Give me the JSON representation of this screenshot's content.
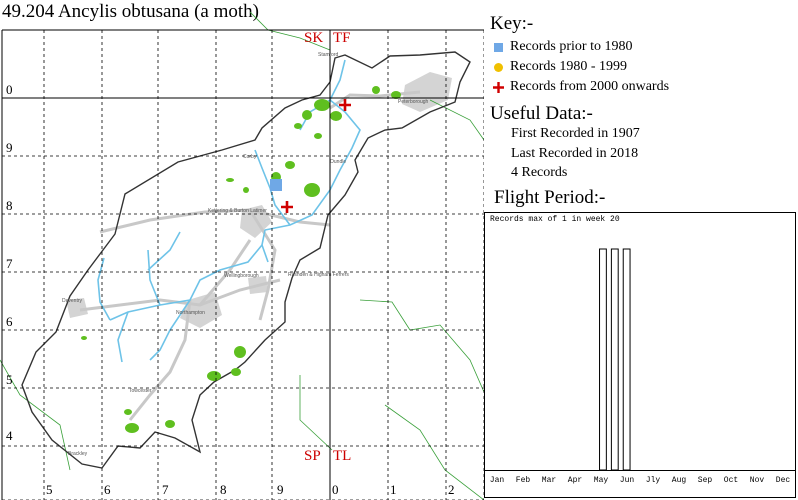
{
  "title": "49.204 Ancylis obtusana (a moth)",
  "map": {
    "square_labels": {
      "sk": "SK",
      "tf": "TF",
      "sp": "SP",
      "tl": "TL"
    },
    "row_labels": [
      "0",
      "9",
      "8",
      "7",
      "6",
      "5",
      "4"
    ],
    "col_labels": [
      "5",
      "6",
      "7",
      "8",
      "9",
      "0",
      "1",
      "2"
    ],
    "towns": [
      "Stamford",
      "Peterborough",
      "Oundle",
      "Corby",
      "Kettering & Burton Latimer",
      "Wellingborough",
      "Rushden & Higham Ferrers",
      "Daventry",
      "Northampton",
      "Towcester",
      "Brackley"
    ],
    "records": [
      {
        "period": "prior_1980",
        "label": "blue square"
      },
      {
        "period": "from_2000",
        "label": "red cross"
      },
      {
        "period": "from_2000",
        "label": "red cross"
      }
    ],
    "colors": {
      "prior_1980": "#6fa8e6",
      "y1980_1999": "#f0c000",
      "from_2000": "#d00000",
      "grid": "#000000",
      "boundary": "#333333",
      "river": "#6ec3e8",
      "woodland": "#5fbf1f",
      "urban": "#d4d4d4",
      "road": "#c8c8c8",
      "label_red": "#cc0000"
    }
  },
  "key": {
    "heading": "Key:-",
    "items": [
      {
        "symbol": "square",
        "label": "Records prior to 1980"
      },
      {
        "symbol": "circle",
        "label": "Records 1980 - 1999"
      },
      {
        "symbol": "cross",
        "label": "Records from 2000 onwards"
      }
    ]
  },
  "useful": {
    "heading": "Useful Data:-",
    "first": "First Recorded in 1907",
    "last": "Last Recorded in 2018",
    "count": "4 Records"
  },
  "flight": {
    "heading": "Flight Period:-",
    "caption": "Records max of 1 in week 20",
    "months": [
      "Jan",
      "Feb",
      "Mar",
      "Apr",
      "May",
      "Jun",
      "Jly",
      "Aug",
      "Sep",
      "Oct",
      "Nov",
      "Dec"
    ],
    "bars": [
      {
        "week": 20,
        "value": 1
      },
      {
        "week": 22,
        "value": 1
      },
      {
        "week": 24,
        "value": 1
      }
    ],
    "max": 1,
    "weeks": 52
  }
}
